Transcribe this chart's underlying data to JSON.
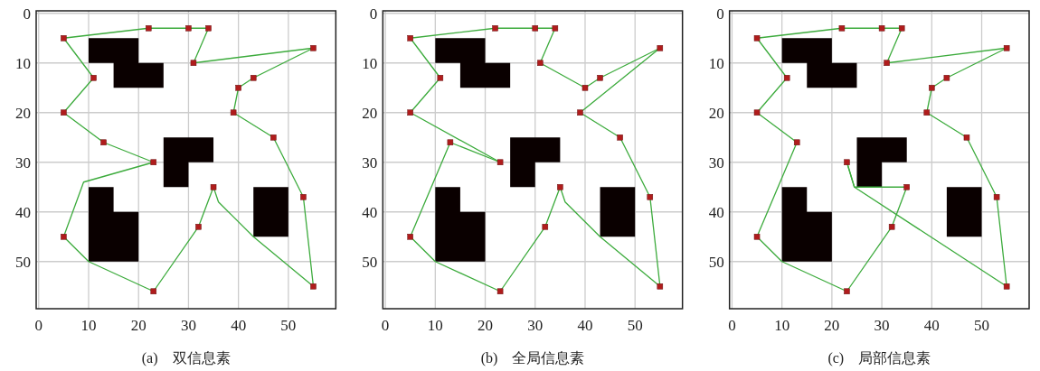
{
  "chart_data": [
    {
      "type": "line",
      "xlabel": "(a)　双信息素",
      "xlim": [
        -0.5,
        59.5
      ],
      "ylim": [
        59.5,
        -0.5
      ],
      "xticks": [
        0,
        10,
        20,
        30,
        40,
        50
      ],
      "yticks": [
        0,
        10,
        20,
        30,
        40,
        50
      ],
      "grid": true,
      "series": [
        {
          "type": "area",
          "color": "#0a0000",
          "x": [
            10,
            20,
            20,
            25,
            25,
            15,
            15,
            10
          ],
          "values": [
            5,
            5,
            10,
            10,
            15,
            15,
            10,
            10
          ]
        },
        {
          "type": "area",
          "color": "#0a0000",
          "x": [
            25,
            35,
            35,
            30,
            30,
            25
          ],
          "values": [
            25,
            25,
            30,
            30,
            35,
            35
          ]
        },
        {
          "type": "area",
          "color": "#0a0000",
          "x": [
            10,
            15,
            15,
            20,
            20,
            10
          ],
          "values": [
            35,
            35,
            40,
            40,
            50,
            50
          ]
        },
        {
          "type": "area",
          "color": "#0a0000",
          "x": [
            43,
            50,
            50,
            43
          ],
          "values": [
            35,
            35,
            45,
            45
          ]
        },
        {
          "color": "#3cab3c",
          "x": [
            5,
            22,
            30,
            34
          ],
          "values": [
            5,
            3,
            3,
            3
          ]
        },
        {
          "color": "#3cab3c",
          "x": [
            34,
            31
          ],
          "values": [
            3,
            10
          ]
        },
        {
          "color": "#3cab3c",
          "x": [
            31,
            55
          ],
          "values": [
            10,
            7
          ]
        },
        {
          "color": "#3cab3c",
          "x": [
            55,
            43,
            40,
            39
          ],
          "values": [
            7,
            13,
            15,
            20
          ]
        },
        {
          "color": "#3cab3c",
          "x": [
            39,
            47,
            53,
            55
          ],
          "values": [
            20,
            25,
            37,
            55
          ]
        },
        {
          "color": "#3cab3c",
          "x": [
            55,
            43,
            36,
            35,
            32,
            23,
            10,
            5
          ],
          "values": [
            55,
            45,
            38,
            35,
            43,
            56,
            50,
            45
          ]
        },
        {
          "color": "#3cab3c",
          "x": [
            5,
            9,
            23
          ],
          "values": [
            45,
            34,
            30
          ]
        },
        {
          "color": "#3cab3c",
          "x": [
            23,
            13,
            5
          ],
          "values": [
            30,
            26,
            20
          ]
        },
        {
          "color": "#3cab3c",
          "x": [
            5,
            11
          ],
          "values": [
            20,
            13
          ]
        },
        {
          "color": "#3cab3c",
          "x": [
            11,
            5
          ],
          "values": [
            13,
            5
          ]
        },
        {
          "type": "scatter",
          "marker": "square",
          "color": "#b01c1c",
          "x": [
            5,
            22,
            30,
            34,
            31,
            55,
            43,
            40,
            39,
            47,
            53,
            55,
            35,
            32,
            23,
            5,
            13,
            23,
            5,
            11
          ],
          "values": [
            5,
            3,
            3,
            3,
            10,
            7,
            13,
            15,
            20,
            25,
            37,
            55,
            35,
            43,
            56,
            45,
            26,
            30,
            20,
            13
          ]
        }
      ]
    },
    {
      "type": "line",
      "xlabel": "(b)　全局信息素",
      "xlim": [
        -0.5,
        59.5
      ],
      "ylim": [
        59.5,
        -0.5
      ],
      "xticks": [
        0,
        10,
        20,
        30,
        40,
        50
      ],
      "yticks": [
        0,
        10,
        20,
        30,
        40,
        50
      ],
      "grid": true,
      "series": [
        {
          "type": "area",
          "color": "#0a0000",
          "x": [
            10,
            20,
            20,
            25,
            25,
            15,
            15,
            10
          ],
          "values": [
            5,
            5,
            10,
            10,
            15,
            15,
            10,
            10
          ]
        },
        {
          "type": "area",
          "color": "#0a0000",
          "x": [
            25,
            35,
            35,
            30,
            30,
            25
          ],
          "values": [
            25,
            25,
            30,
            30,
            35,
            35
          ]
        },
        {
          "type": "area",
          "color": "#0a0000",
          "x": [
            10,
            15,
            15,
            20,
            20,
            10
          ],
          "values": [
            35,
            35,
            40,
            40,
            50,
            50
          ]
        },
        {
          "type": "area",
          "color": "#0a0000",
          "x": [
            43,
            50,
            50,
            43
          ],
          "values": [
            35,
            35,
            45,
            45
          ]
        },
        {
          "color": "#3cab3c",
          "x": [
            5,
            22,
            30,
            34
          ],
          "values": [
            5,
            3,
            3,
            3
          ]
        },
        {
          "color": "#3cab3c",
          "x": [
            34,
            31
          ],
          "values": [
            3,
            10
          ]
        },
        {
          "color": "#3cab3c",
          "x": [
            31,
            40,
            43,
            55
          ],
          "values": [
            10,
            15,
            13,
            7
          ]
        },
        {
          "color": "#3cab3c",
          "x": [
            55,
            39
          ],
          "values": [
            7,
            20
          ]
        },
        {
          "color": "#3cab3c",
          "x": [
            39,
            47,
            53,
            55
          ],
          "values": [
            20,
            25,
            37,
            55
          ]
        },
        {
          "color": "#3cab3c",
          "x": [
            55,
            43,
            36,
            35,
            32,
            23,
            10,
            5
          ],
          "values": [
            55,
            45,
            38,
            35,
            43,
            56,
            50,
            45
          ]
        },
        {
          "color": "#3cab3c",
          "x": [
            5,
            13,
            23
          ],
          "values": [
            45,
            26,
            30
          ]
        },
        {
          "color": "#3cab3c",
          "x": [
            23,
            5
          ],
          "values": [
            30,
            20
          ]
        },
        {
          "color": "#3cab3c",
          "x": [
            5,
            11
          ],
          "values": [
            20,
            13
          ]
        },
        {
          "color": "#3cab3c",
          "x": [
            11,
            5
          ],
          "values": [
            13,
            5
          ]
        },
        {
          "type": "scatter",
          "marker": "square",
          "color": "#b01c1c",
          "x": [
            5,
            22,
            30,
            34,
            31,
            55,
            43,
            40,
            39,
            47,
            53,
            55,
            35,
            32,
            23,
            5,
            13,
            23,
            5,
            11
          ],
          "values": [
            5,
            3,
            3,
            3,
            10,
            7,
            13,
            15,
            20,
            25,
            37,
            55,
            35,
            43,
            56,
            45,
            26,
            30,
            20,
            13
          ]
        }
      ]
    },
    {
      "type": "line",
      "xlabel": "(c)　局部信息素",
      "xlim": [
        -0.5,
        59.5
      ],
      "ylim": [
        59.5,
        -0.5
      ],
      "xticks": [
        0,
        10,
        20,
        30,
        40,
        50
      ],
      "yticks": [
        0,
        10,
        20,
        30,
        40,
        50
      ],
      "grid": true,
      "series": [
        {
          "type": "area",
          "color": "#0a0000",
          "x": [
            10,
            20,
            20,
            25,
            25,
            15,
            15,
            10
          ],
          "values": [
            5,
            5,
            10,
            10,
            15,
            15,
            10,
            10
          ]
        },
        {
          "type": "area",
          "color": "#0a0000",
          "x": [
            25,
            35,
            35,
            30,
            30,
            25
          ],
          "values": [
            25,
            25,
            30,
            30,
            35,
            35
          ]
        },
        {
          "type": "area",
          "color": "#0a0000",
          "x": [
            10,
            15,
            15,
            20,
            20,
            10
          ],
          "values": [
            35,
            35,
            40,
            40,
            50,
            50
          ]
        },
        {
          "type": "area",
          "color": "#0a0000",
          "x": [
            43,
            50,
            50,
            43
          ],
          "values": [
            35,
            35,
            45,
            45
          ]
        },
        {
          "color": "#3cab3c",
          "x": [
            5,
            22,
            30,
            34
          ],
          "values": [
            5,
            3,
            3,
            3
          ]
        },
        {
          "color": "#3cab3c",
          "x": [
            34,
            31
          ],
          "values": [
            3,
            10
          ]
        },
        {
          "color": "#3cab3c",
          "x": [
            31,
            55
          ],
          "values": [
            10,
            7
          ]
        },
        {
          "color": "#3cab3c",
          "x": [
            55,
            43,
            40,
            39
          ],
          "values": [
            7,
            13,
            15,
            20
          ]
        },
        {
          "color": "#3cab3c",
          "x": [
            39,
            47,
            53,
            55
          ],
          "values": [
            20,
            25,
            37,
            55
          ]
        },
        {
          "color": "#3cab3c",
          "x": [
            55,
            24.5,
            23
          ],
          "values": [
            55,
            35,
            30
          ]
        },
        {
          "color": "#3cab3c",
          "x": [
            23,
            24.5,
            35
          ],
          "values": [
            30,
            35,
            35
          ]
        },
        {
          "color": "#3cab3c",
          "x": [
            35,
            32,
            23,
            10,
            5
          ],
          "values": [
            35,
            43,
            56,
            50,
            45
          ]
        },
        {
          "color": "#3cab3c",
          "x": [
            5,
            13
          ],
          "values": [
            45,
            26
          ]
        },
        {
          "color": "#3cab3c",
          "x": [
            13,
            5
          ],
          "values": [
            26,
            20
          ]
        },
        {
          "color": "#3cab3c",
          "x": [
            5,
            11
          ],
          "values": [
            20,
            13
          ]
        },
        {
          "color": "#3cab3c",
          "x": [
            11,
            5
          ],
          "values": [
            13,
            5
          ]
        },
        {
          "type": "scatter",
          "marker": "square",
          "color": "#b01c1c",
          "x": [
            5,
            22,
            30,
            34,
            31,
            55,
            43,
            40,
            39,
            47,
            53,
            55,
            35,
            32,
            23,
            5,
            13,
            23,
            5,
            11
          ],
          "values": [
            5,
            3,
            3,
            3,
            10,
            7,
            13,
            15,
            20,
            25,
            37,
            55,
            35,
            43,
            56,
            45,
            26,
            30,
            20,
            13
          ]
        }
      ]
    }
  ]
}
